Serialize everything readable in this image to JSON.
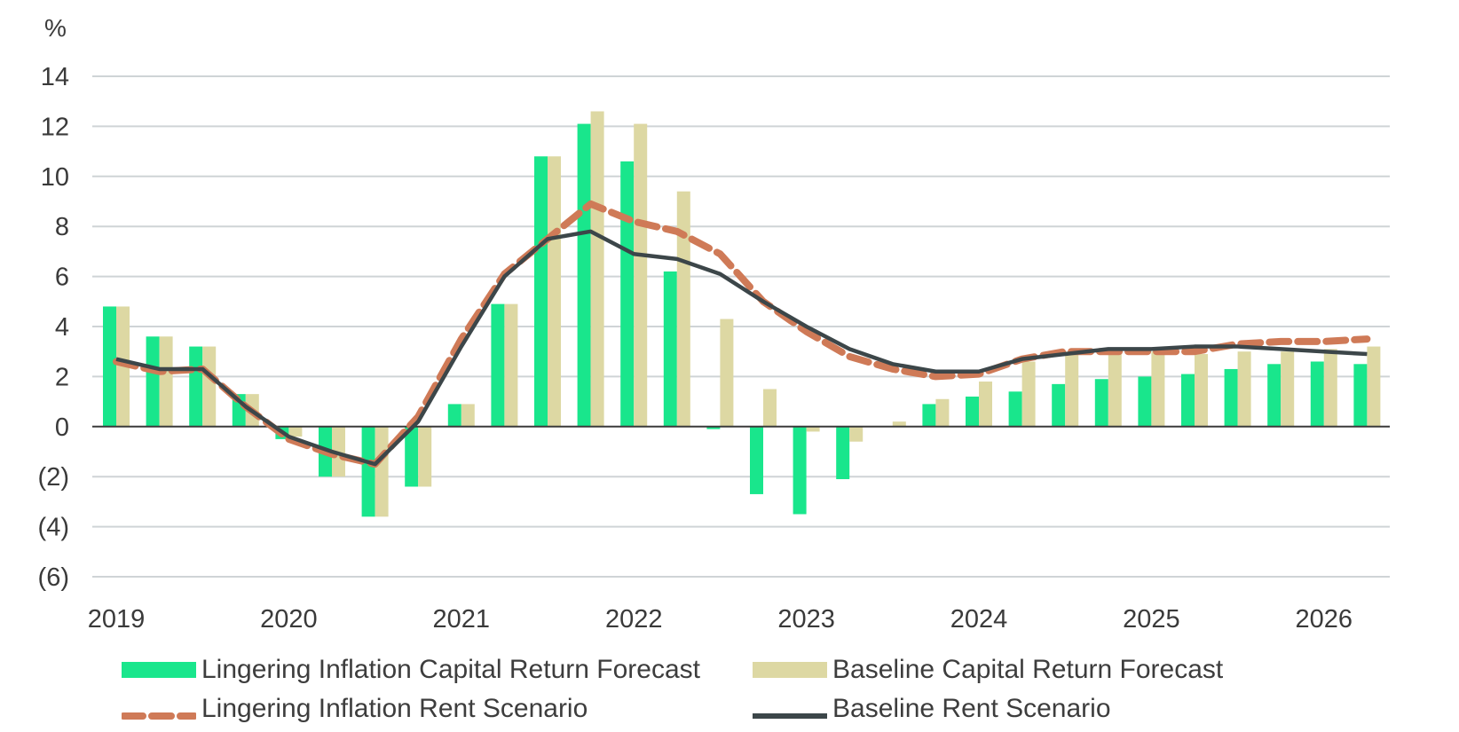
{
  "chart_data": {
    "type": "bar",
    "unit_label": "%",
    "y_ticks": [
      "14",
      "12",
      "10",
      "8",
      "6",
      "4",
      "2",
      "0",
      "(2)",
      "(4)",
      "(6)"
    ],
    "ylim": [
      -6,
      14
    ],
    "x_tick_labels": [
      "2019",
      "2020",
      "2021",
      "2022",
      "2023",
      "2024",
      "2025",
      "2026"
    ],
    "periods": [
      "2019Q1",
      "2019Q2",
      "2019Q3",
      "2019Q4",
      "2020Q1",
      "2020Q2",
      "2020Q3",
      "2020Q4",
      "2021Q1",
      "2021Q2",
      "2021Q3",
      "2021Q4",
      "2022Q1",
      "2022Q2",
      "2022Q3",
      "2022Q4",
      "2023Q1",
      "2023Q2",
      "2023Q3",
      "2023Q4",
      "2024Q1",
      "2024Q2",
      "2024Q3",
      "2024Q4",
      "2025Q1",
      "2025Q2",
      "2025Q3",
      "2025Q4",
      "2026Q1",
      "2026Q2"
    ],
    "series": [
      {
        "name": "Lingering Inflation Capital Return Forecast",
        "kind": "bar",
        "color": "#19e68c",
        "values": [
          4.8,
          3.6,
          3.2,
          1.3,
          -0.5,
          -2.0,
          -3.6,
          -2.4,
          0.9,
          4.9,
          10.8,
          12.1,
          10.6,
          6.2,
          -0.1,
          -2.7,
          -3.5,
          -2.1,
          0.0,
          0.9,
          1.2,
          1.4,
          1.7,
          1.9,
          2.0,
          2.1,
          2.3,
          2.5,
          2.6,
          2.5
        ]
      },
      {
        "name": "Baseline Capital Return Forecast",
        "kind": "bar",
        "color": "#ddd8a3",
        "values": [
          4.8,
          3.6,
          3.2,
          1.3,
          -0.4,
          -2.0,
          -3.6,
          -2.4,
          0.9,
          4.9,
          10.8,
          12.6,
          12.1,
          9.4,
          4.3,
          1.5,
          -0.2,
          -0.6,
          0.2,
          1.1,
          1.8,
          2.6,
          3.0,
          3.0,
          3.0,
          2.9,
          3.0,
          3.0,
          3.1,
          3.2
        ]
      },
      {
        "name": "Lingering Inflation Rent Scenario",
        "kind": "line",
        "style": "dashed",
        "color": "#cf7a57",
        "values": [
          2.6,
          2.2,
          2.3,
          0.8,
          -0.5,
          -1.1,
          -1.5,
          0.4,
          3.5,
          6.1,
          7.5,
          8.9,
          8.2,
          7.8,
          6.9,
          5.0,
          3.8,
          2.8,
          2.3,
          2.0,
          2.1,
          2.7,
          3.0,
          3.0,
          3.0,
          3.0,
          3.3,
          3.4,
          3.4,
          3.5
        ]
      },
      {
        "name": "Baseline Rent Scenario",
        "kind": "line",
        "style": "solid",
        "color": "#3c4649",
        "values": [
          2.7,
          2.3,
          2.3,
          0.8,
          -0.4,
          -1.0,
          -1.5,
          0.2,
          3.2,
          6.0,
          7.5,
          7.8,
          6.9,
          6.7,
          6.1,
          5.0,
          4.0,
          3.1,
          2.5,
          2.2,
          2.2,
          2.7,
          2.9,
          3.1,
          3.1,
          3.2,
          3.2,
          3.1,
          3.0,
          2.9
        ]
      }
    ],
    "grid": true,
    "legend_position": "bottom"
  }
}
